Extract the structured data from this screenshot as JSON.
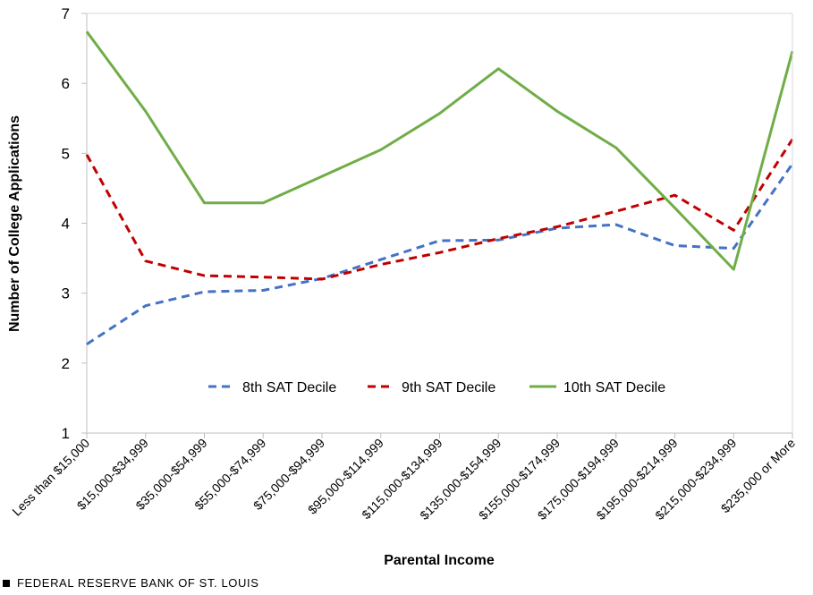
{
  "chart_data": {
    "type": "line",
    "title": "",
    "xlabel": "Parental Income",
    "ylabel": "Number of College Applications",
    "ylim": [
      1,
      7
    ],
    "yticks": [
      1,
      2,
      3,
      4,
      5,
      6,
      7
    ],
    "grid": false,
    "legend_position": "inside-bottom-center",
    "categories": [
      "Less than $15,000",
      "$15,000-$34,999",
      "$35,000-$54,999",
      "$55,000-$74,999",
      "$75,000-$94,999",
      "$95,000-$114,999",
      "$115,000-$134,999",
      "$135,000-$154,999",
      "$155,000-$174,999",
      "$175,000-$194,999",
      "$195,000-$214,999",
      "$215,000-$234,999",
      "$235,000 or More"
    ],
    "series": [
      {
        "name": "8th SAT Decile",
        "color": "#4472c4",
        "style": "dashed",
        "values": [
          2.27,
          2.82,
          3.02,
          3.04,
          3.21,
          3.48,
          3.75,
          3.76,
          3.93,
          3.98,
          3.68,
          3.64,
          4.85
        ]
      },
      {
        "name": "9th SAT Decile",
        "color": "#c00000",
        "style": "dashed",
        "values": [
          4.98,
          3.46,
          3.25,
          3.23,
          3.2,
          3.41,
          3.58,
          3.78,
          3.95,
          4.17,
          4.4,
          3.9,
          5.2
        ]
      },
      {
        "name": "10th SAT Decile",
        "color": "#70ad47",
        "style": "solid",
        "values": [
          6.74,
          5.6,
          4.29,
          4.29,
          4.67,
          5.05,
          5.57,
          6.21,
          5.6,
          5.08,
          4.22,
          3.34,
          6.46
        ]
      }
    ]
  },
  "footer": {
    "source": "FEDERAL RESERVE BANK OF ST. LOUIS"
  }
}
